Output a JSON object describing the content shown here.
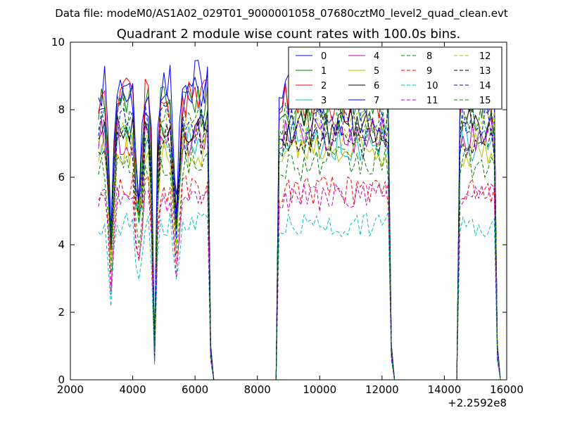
{
  "chart_data": {
    "type": "line",
    "suptitle": "Data file: modeM0/AS1A02_029T01_9000001058_07680cztM0_level2_quad_clean.evt",
    "title": "Quadrant 2 module wise count rates with 100.0s bins.",
    "xlabel": "",
    "ylabel": "",
    "xlim": [
      2000,
      16000
    ],
    "ylim": [
      0,
      10
    ],
    "x_ticks": [
      2000,
      4000,
      6000,
      8000,
      10000,
      12000,
      14000,
      16000
    ],
    "x_tick_labels": [
      "2000",
      "4000",
      "6000",
      "8000",
      "10000",
      "12000",
      "14000",
      "16000"
    ],
    "y_ticks": [
      0,
      2,
      4,
      6,
      8,
      10
    ],
    "y_tick_labels": [
      "0",
      "2",
      "4",
      "6",
      "8",
      "10"
    ],
    "x_offset_label": "+2.2592e8",
    "grid": false,
    "legend_position": "top-right",
    "legend_columns": 4,
    "segments": [
      {
        "start": 2900,
        "end": 6500,
        "dips": [
          [
            3300,
            0.5
          ],
          [
            4200,
            0.65
          ],
          [
            4700,
            0.1
          ],
          [
            5400,
            0.6
          ]
        ]
      },
      {
        "start": 8700,
        "end": 12300,
        "dips": []
      },
      {
        "start": 14500,
        "end": 15700,
        "dips": []
      }
    ],
    "gap_x": [
      6600,
      8600,
      12400,
      14400
    ],
    "series": [
      {
        "name": "0",
        "color": "#0000ff",
        "dash": "solid",
        "level": 8.4
      },
      {
        "name": "1",
        "color": "#008000",
        "dash": "solid",
        "level": 8.1
      },
      {
        "name": "2",
        "color": "#ff0000",
        "dash": "solid",
        "level": 8.3
      },
      {
        "name": "3",
        "color": "#00bfbf",
        "dash": "solid",
        "level": 7.0
      },
      {
        "name": "4",
        "color": "#bf00bf",
        "dash": "solid",
        "level": 7.2
      },
      {
        "name": "5",
        "color": "#bfbf00",
        "dash": "solid",
        "level": 6.8
      },
      {
        "name": "6",
        "color": "#000000",
        "dash": "solid",
        "level": 7.5
      },
      {
        "name": "7",
        "color": "#0000ff",
        "dash": "solid",
        "level": 8.8
      },
      {
        "name": "8",
        "color": "#008000",
        "dash": "dashed",
        "level": 6.4
      },
      {
        "name": "9",
        "color": "#ff0000",
        "dash": "dashed",
        "level": 5.6
      },
      {
        "name": "10",
        "color": "#00bfbf",
        "dash": "dashed",
        "level": 4.6
      },
      {
        "name": "11",
        "color": "#bf00bf",
        "dash": "dashed",
        "level": 5.4
      },
      {
        "name": "12",
        "color": "#bfbf00",
        "dash": "dashed",
        "level": 7.4
      },
      {
        "name": "13",
        "color": "#000000",
        "dash": "dashed",
        "level": 7.1
      },
      {
        "name": "14",
        "color": "#0000ff",
        "dash": "dashed",
        "level": 7.6
      },
      {
        "name": "15",
        "color": "#008000",
        "dash": "dashed",
        "level": 7.8
      }
    ]
  }
}
